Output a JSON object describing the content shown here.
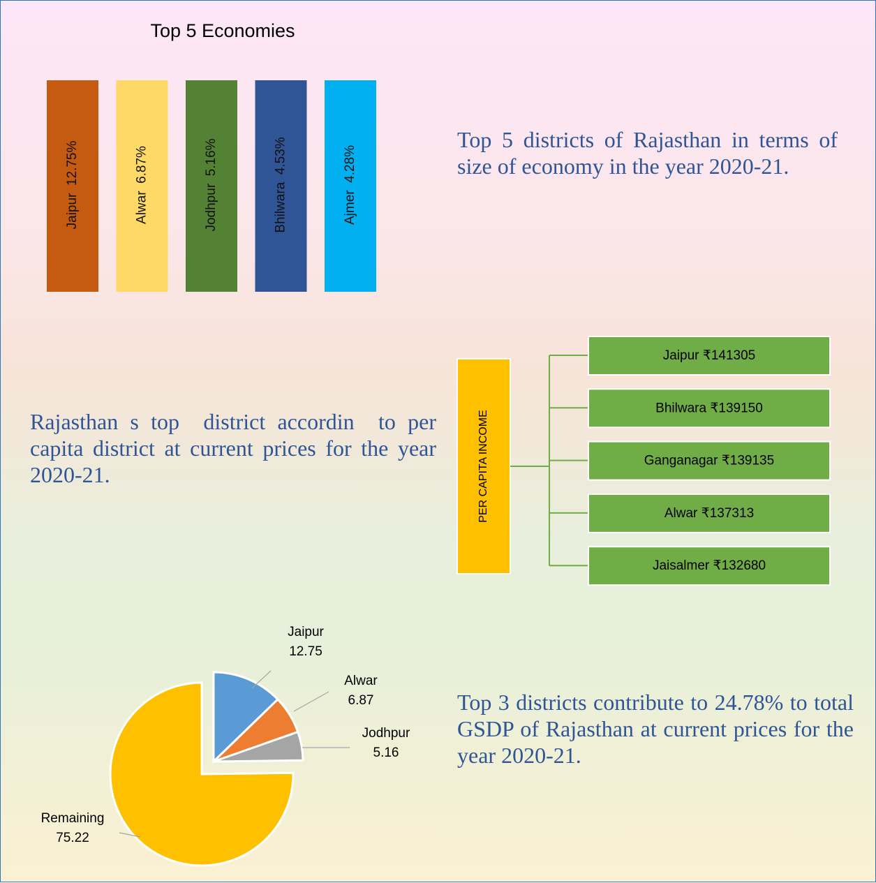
{
  "top_economies": {
    "title": "Top 5 Economies",
    "items": [
      {
        "label": "Jaipur  12.75%",
        "color": "#c55a11"
      },
      {
        "label": "Alwar  6.87%",
        "color": "#ffd966"
      },
      {
        "label": "Jodhpur  5.16%",
        "color": "#548235"
      },
      {
        "label": "Bhilwara  4.53%",
        "color": "#2f5597"
      },
      {
        "label": "Ajmer  4.28%",
        "color": "#00b0f0"
      }
    ]
  },
  "description_top": "Top 5 districts of Rajasthan in terms of size of economy in the year 2020-21.",
  "description_middle": "Rajasthan s top  district accordin  to per capita district at current prices for the year 2020-21.",
  "per_capita": {
    "root": "PER CAPITA INCOME",
    "nodes": [
      "Jaipur ₹141305",
      "Bhilwara ₹139150",
      "Ganganagar ₹139135",
      "Alwar ₹137313",
      "Jaisalmer ₹132680"
    ]
  },
  "chart_data": {
    "type": "pie",
    "categories": [
      "Jaipur",
      "Alwar",
      "Jodhpur",
      "Remaining"
    ],
    "values": [
      12.75,
      6.87,
      5.16,
      75.22
    ],
    "colors": [
      "#5b9bd5",
      "#ed7d31",
      "#a5a5a5",
      "#ffc000"
    ]
  },
  "description_bottom": "Top 3 districts contribute to 24.78% to total GSDP of Rajasthan at current prices for the year 2020-21."
}
